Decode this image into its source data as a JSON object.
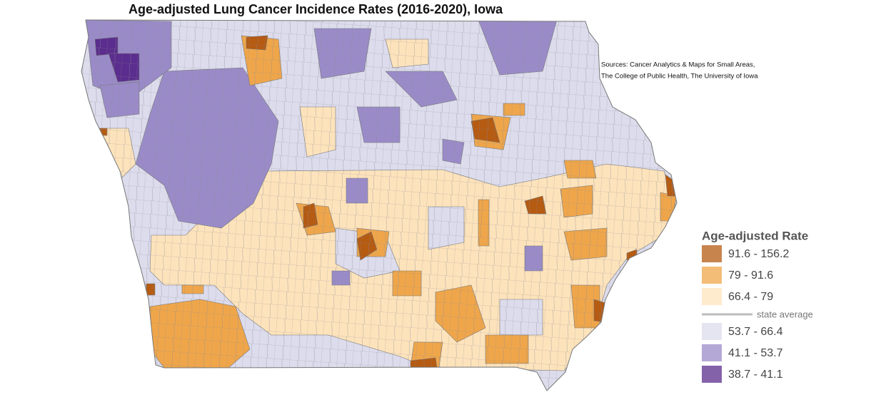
{
  "title": "Age-adjusted Lung Cancer Incidence Rates (2016-2020), Iowa",
  "sources": [
    "Sources: Cancer Analytics & Maps for Small Areas,",
    "The College of Public Health, The University of Iowa"
  ],
  "legend": {
    "title": "Age-adjusted Rate",
    "upper": [
      {
        "label": "91.6 - 156.2",
        "color": "#b55b12"
      },
      {
        "label": "79 - 91.6",
        "color": "#efa64a"
      },
      {
        "label": "66.4 - 79",
        "color": "#fde3bb"
      }
    ],
    "divider": "state average",
    "lower": [
      {
        "label": "53.7 - 66.4",
        "color": "#dcdcec"
      },
      {
        "label": "41.1 - 53.7",
        "color": "#9a8bc8"
      },
      {
        "label": "38.7 - 41.1",
        "color": "#5b2d8e"
      }
    ]
  }
}
